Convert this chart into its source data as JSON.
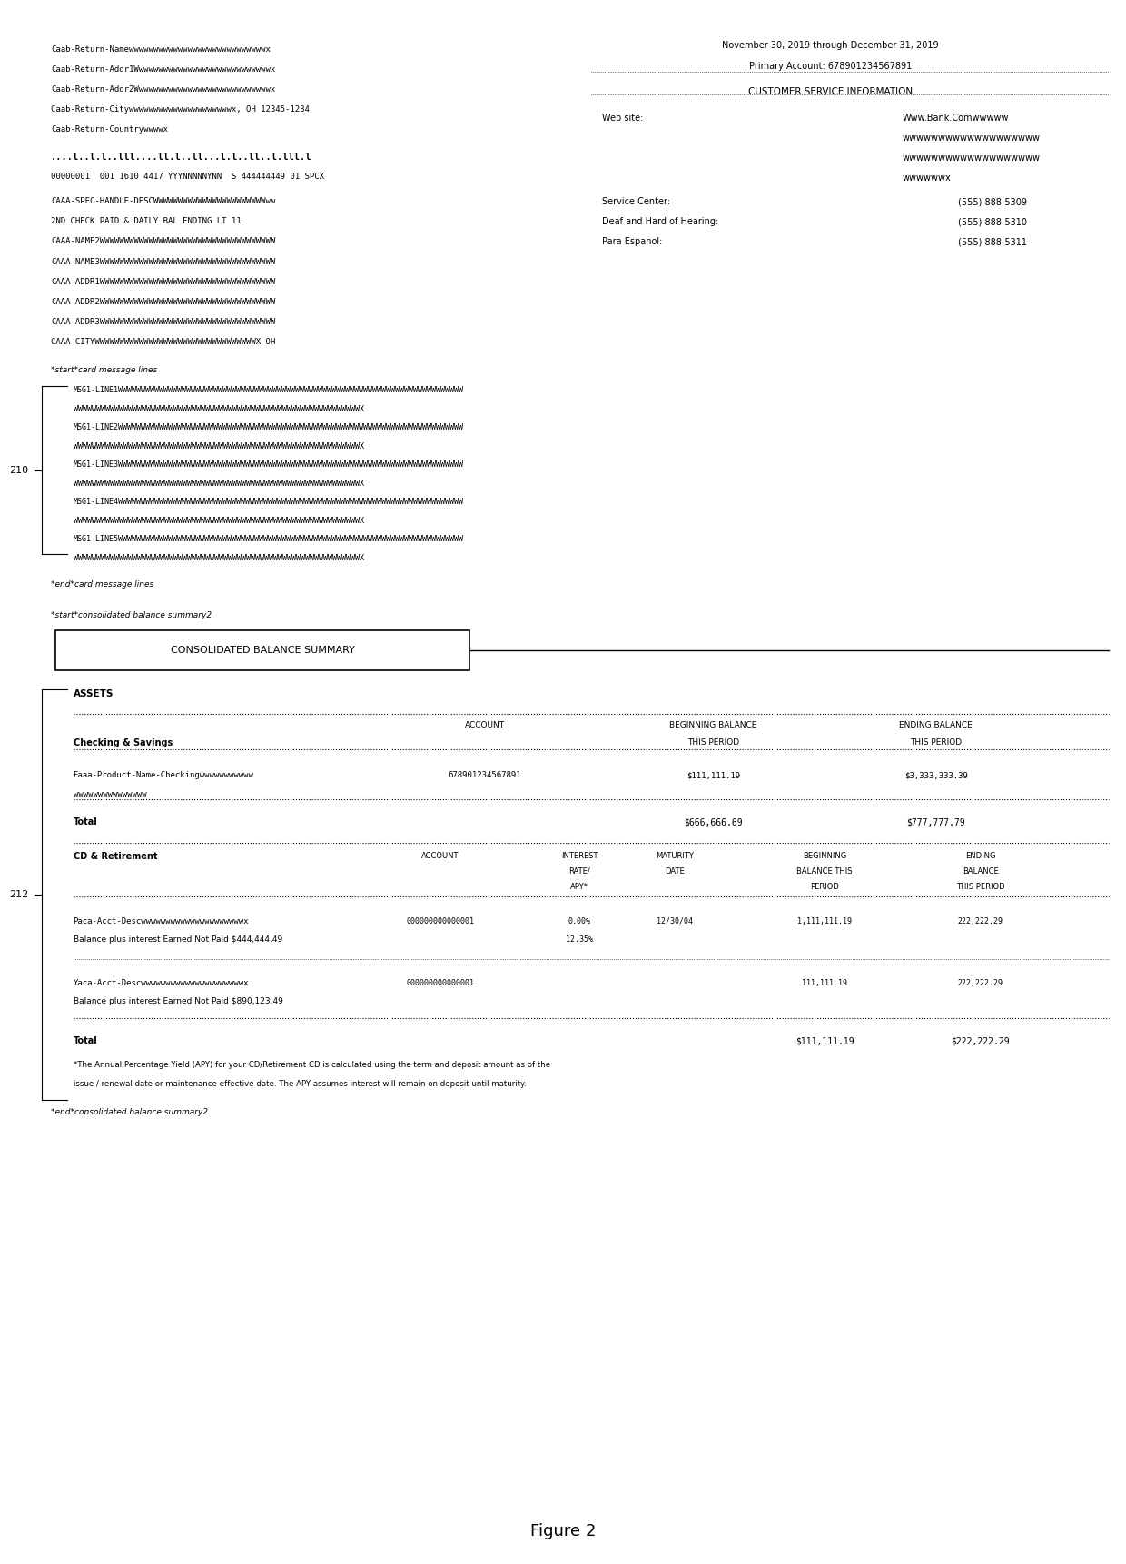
{
  "title": "Figure 2",
  "bg_color": "#ffffff",
  "left_lines_top": [
    "Caab-Return-Namewwwwwwwwwwwwwwwwwwwwwwwwwwwwx",
    "Caab-Return-Addr1Wwwwwwwwwwwwwwwwwwwwwwwwwwwwx",
    "Caab-Return-Addr2Wwwwwwwwwwwwwwwwwwwwwwwwwwwwx",
    "Caab-Return-Citywwwwwwwwwwwwwwwwwwwwwx, OH 12345-1234",
    "Caab-Return-Countrywwwwx"
  ],
  "barcode_line": "....l..l.l..lll....ll.l..ll...l.l..ll..l.lll.l",
  "postal_line": "00000001  001 1610 4417 YYYNNNNNYNN  S 444444449 01 SPCX",
  "spec_lines": [
    "CAAA-SPEC-HANDLE-DESCWWWWWWWWWWWWWWWWWWWWWWWww",
    "2ND CHECK PAID & DAILY BAL ENDING LT 11",
    "CAAA-NAME2WWWWWWWWWWWWWWWWWWWWWWWWWWWWWWWWWWWW",
    "CAAA-NAME3WWWWWWWWWWWWWWWWWWWWWWWWWWWWWWWWWWWW",
    "CAAA-ADDR1WWWWWWWWWWWWWWWWWWWWWWWWWWWWWWWWWWWW",
    "CAAA-ADDR2WWWWWWWWWWWWWWWWWWWWWWWWWWWWWWWWWWWW",
    "CAAA-ADDR3WWWWWWWWWWWWWWWWWWWWWWWWWWWWWWWWWWWW",
    "CAAA-CITYWWWWWWWWWWWWWWWWWWWWWWWWWWWWWWWWWX OH"
  ],
  "card_msg_label_start": "*start*card message lines",
  "card_msg_lines": [
    "MSG1-LINE1WWWWWWWWWWWWWWWWWWWWWWWWWWWWWWWWWWWWWWWWWWWWWWWWWWWWWWWWWWWWWWWWWWWWWWWWWWWW",
    "WWWWWWWWWWWWWWWWWWWWWWWWWWWWWWWWWWWWWWWWWWWWWWWWWWWWWWWWWWWWWWWX",
    "MSG1-LINE2WWWWWWWWWWWWWWWWWWWWWWWWWWWWWWWWWWWWWWWWWWWWWWWWWWWWWWWWWWWWWWWWWWWWWWWWWWWW",
    "WWWWWWWWWWWWWWWWWWWWWWWWWWWWWWWWWWWWWWWWWWWWWWWWWWWWWWWWWWWWWWWX",
    "MSG1-LINE3WWWWWWWWWWWWWWWWWWWWWWWWWWWWWWWWWWWWWWWWWWWWWWWWWWWWWWWWWWWWWWWWWWWWWWWWWWWW",
    "WWWWWWWWWWWWWWWWWWWWWWWWWWWWWWWWWWWWWWWWWWWWWWWWWWWWWWWWWWWWWWWX",
    "MSG1-LINE4WWWWWWWWWWWWWWWWWWWWWWWWWWWWWWWWWWWWWWWWWWWWWWWWWWWWWWWWWWWWWWWWWWWWWWWWWWWW",
    "WWWWWWWWWWWWWWWWWWWWWWWWWWWWWWWWWWWWWWWWWWWWWWWWWWWWWWWWWWWWWWWX",
    "MSG1-LINE5WWWWWWWWWWWWWWWWWWWWWWWWWWWWWWWWWWWWWWWWWWWWWWWWWWWWWWWWWWWWWWWWWWWWWWWWWWWW",
    "WWWWWWWWWWWWWWWWWWWWWWWWWWWWWWWWWWWWWWWWWWWWWWWWWWWWWWWWWWWWWWWX"
  ],
  "card_msg_label_end": "*end*card message lines",
  "cbs_label_start": "*start*consolidated balance summary2",
  "cbs_header": "CONSOLIDATED BALANCE SUMMARY",
  "cbs_label_end": "*end*consolidated balance summary2",
  "assets_label": "ASSETS",
  "checking_savings_label": "Checking & Savings",
  "apy_footnote_line1": "*The Annual Percentage Yield (APY) for your CD/Retirement CD is calculated using the term and deposit amount as of the",
  "apy_footnote_line2": "issue / renewal date or maintenance effective date. The APY assumes interest will remain on deposit until maturity.",
  "right_header1": "November 30, 2019 through December 31, 2019",
  "right_header2": "Primary Account: 678901234567891",
  "csi_label": "CUSTOMER SERVICE INFORMATION",
  "web_label": "Web site:",
  "web_value1": "Www.Bank.Comwwwww",
  "web_value2": "wwwwwwwwwwwwwwwwwww",
  "web_value3": "wwwwwwwwwwwwwwwwwww",
  "web_value4": "wwwwwwx",
  "svc_center_label": "Service Center:",
  "svc_center_val": "(555) 888-5309",
  "deaf_label": "Deaf and Hard of Hearing:",
  "deaf_val": "(555) 888-5310",
  "espanol_label": "Para Espanol:",
  "espanol_val": "(555) 888-5311",
  "label_210": "210",
  "label_212": "212"
}
